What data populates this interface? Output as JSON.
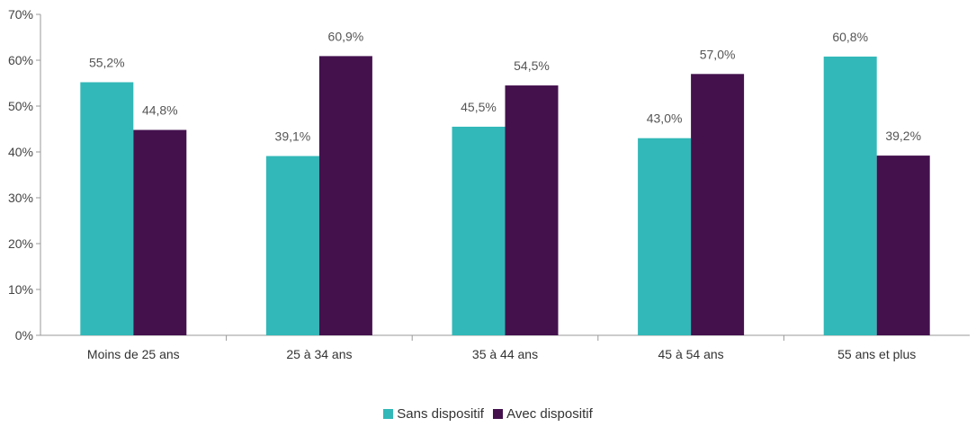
{
  "chart_data": {
    "type": "bar",
    "categories": [
      "Moins de 25 ans",
      "25 à 34 ans",
      "35 à 44 ans",
      "45 à 54 ans",
      "55 ans et plus"
    ],
    "series": [
      {
        "name": "Sans dispositif",
        "color": "#32b8b8",
        "values": [
          55.2,
          39.1,
          45.5,
          43.0,
          60.8
        ],
        "labels": [
          "55,2%",
          "39,1%",
          "45,5%",
          "43,0%",
          "60,8%"
        ]
      },
      {
        "name": "Avec dispositif",
        "color": "#44114d",
        "values": [
          44.8,
          60.9,
          54.5,
          57.0,
          39.2
        ],
        "labels": [
          "44,8%",
          "60,9%",
          "54,5%",
          "57,0%",
          "39,2%"
        ]
      }
    ],
    "ylim": [
      0,
      70
    ],
    "yticks": [
      0,
      10,
      20,
      30,
      40,
      50,
      60,
      70
    ],
    "ytick_labels": [
      "0%",
      "10%",
      "20%",
      "30%",
      "40%",
      "50%",
      "60%",
      "70%"
    ],
    "grid": false,
    "legend_position": "bottom"
  }
}
